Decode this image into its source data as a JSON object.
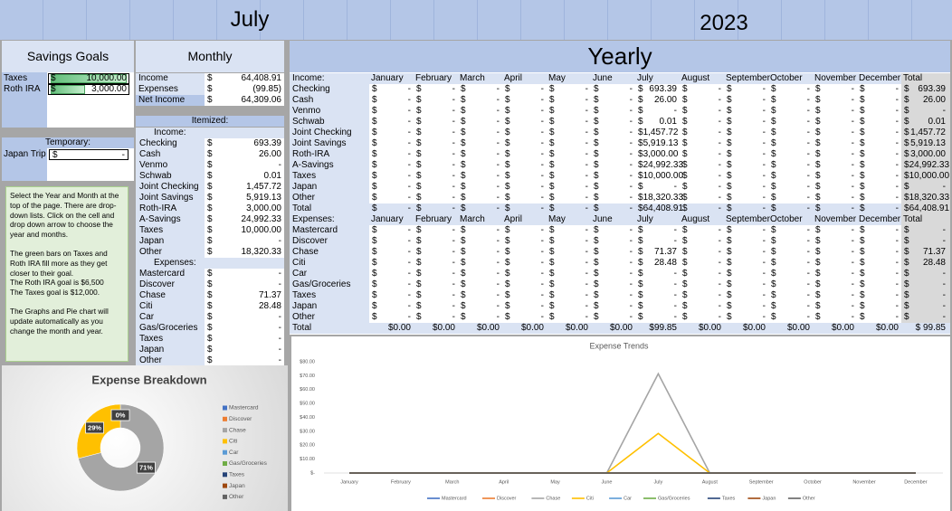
{
  "header": {
    "month": "July",
    "year": "2023"
  },
  "savings_goals": {
    "title": "Savings Goals",
    "currency": "$",
    "rows": [
      {
        "name": "Taxes",
        "value": "10,000.00"
      },
      {
        "name": "Roth IRA",
        "value": "3,000.00"
      }
    ]
  },
  "temporary": {
    "label": "Temporary:",
    "currency": "$",
    "rows": [
      {
        "name": "Japan Trip",
        "value": "-"
      }
    ]
  },
  "note": {
    "paragraphs": [
      [
        "Select the Year and Month at the top of the page. There are drop-down lists. Click on the cell and drop down arrow to choose the year and months."
      ],
      [
        "The green bars on Taxes and Roth IRA fill more as they get closer to their goal.",
        "The Roth IRA goal is $6,500",
        "The Taxes goal is $12,000."
      ],
      [
        "The Graphs and Pie chart will update automatically as you change the month and year."
      ]
    ]
  },
  "monthly": {
    "title": "Monthly",
    "currency": "$",
    "summary": [
      {
        "name": "Income",
        "value": "64,408.91"
      },
      {
        "name": "Expenses",
        "value": "(99.85)"
      },
      {
        "name": "Net Income",
        "value": "64,309.06"
      }
    ],
    "itemized": "Itemized:",
    "income": {
      "label": "Income:",
      "rows": [
        {
          "name": "Checking",
          "value": "693.39"
        },
        {
          "name": "Cash",
          "value": "26.00"
        },
        {
          "name": "Venmo",
          "value": "-"
        },
        {
          "name": "Schwab",
          "value": "0.01"
        },
        {
          "name": "Joint Checking",
          "value": "1,457.72"
        },
        {
          "name": "Joint Savings",
          "value": "5,919.13"
        },
        {
          "name": "Roth-IRA",
          "value": "3,000.00"
        },
        {
          "name": "A-Savings",
          "value": "24,992.33"
        },
        {
          "name": "Taxes",
          "value": "10,000.00"
        },
        {
          "name": "Japan",
          "value": "-"
        },
        {
          "name": "Other",
          "value": "18,320.33"
        }
      ]
    },
    "expenses": {
      "label": "Expenses:",
      "rows": [
        {
          "name": "Mastercard",
          "value": "-"
        },
        {
          "name": "Discover",
          "value": "-"
        },
        {
          "name": "Chase",
          "value": "71.37"
        },
        {
          "name": "Citi",
          "value": "28.48"
        },
        {
          "name": "Car",
          "value": "-"
        },
        {
          "name": "Gas/Groceries",
          "value": "-"
        },
        {
          "name": "Taxes",
          "value": "-"
        },
        {
          "name": "Japan",
          "value": "-"
        },
        {
          "name": "Other",
          "value": "-"
        }
      ]
    }
  },
  "yearly": {
    "title": "Yearly",
    "currency": "$",
    "total_label": "Total",
    "months": [
      "January",
      "February",
      "March",
      "April",
      "May",
      "June",
      "July",
      "August",
      "September",
      "October",
      "November",
      "December"
    ],
    "income": {
      "label": "Income:",
      "rows": [
        {
          "name": "Checking",
          "values": [
            "-",
            "-",
            "-",
            "-",
            "-",
            "-",
            "693.39",
            "-",
            "-",
            "-",
            "-",
            "-",
            "693.39"
          ]
        },
        {
          "name": "Cash",
          "values": [
            "-",
            "-",
            "-",
            "-",
            "-",
            "-",
            "26.00",
            "-",
            "-",
            "-",
            "-",
            "-",
            "26.00"
          ]
        },
        {
          "name": "Venmo",
          "values": [
            "-",
            "-",
            "-",
            "-",
            "-",
            "-",
            "-",
            "-",
            "-",
            "-",
            "-",
            "-",
            "-"
          ]
        },
        {
          "name": "Schwab",
          "values": [
            "-",
            "-",
            "-",
            "-",
            "-",
            "-",
            "0.01",
            "-",
            "-",
            "-",
            "-",
            "-",
            "0.01"
          ]
        },
        {
          "name": "Joint Checking",
          "values": [
            "-",
            "-",
            "-",
            "-",
            "-",
            "-",
            "1,457.72",
            "-",
            "-",
            "-",
            "-",
            "-",
            "1,457.72"
          ]
        },
        {
          "name": "Joint Savings",
          "values": [
            "-",
            "-",
            "-",
            "-",
            "-",
            "-",
            "5,919.13",
            "-",
            "-",
            "-",
            "-",
            "-",
            "5,919.13"
          ]
        },
        {
          "name": "Roth-IRA",
          "values": [
            "-",
            "-",
            "-",
            "-",
            "-",
            "-",
            "3,000.00",
            "-",
            "-",
            "-",
            "-",
            "-",
            "3,000.00"
          ]
        },
        {
          "name": "A-Savings",
          "values": [
            "-",
            "-",
            "-",
            "-",
            "-",
            "-",
            "24,992.33",
            "-",
            "-",
            "-",
            "-",
            "-",
            "24,992.33"
          ]
        },
        {
          "name": "Taxes",
          "values": [
            "-",
            "-",
            "-",
            "-",
            "-",
            "-",
            "10,000.00",
            "-",
            "-",
            "-",
            "-",
            "-",
            "10,000.00"
          ]
        },
        {
          "name": "Japan",
          "values": [
            "-",
            "-",
            "-",
            "-",
            "-",
            "-",
            "-",
            "-",
            "-",
            "-",
            "-",
            "-",
            "-"
          ]
        },
        {
          "name": "Other",
          "values": [
            "-",
            "-",
            "-",
            "-",
            "-",
            "-",
            "18,320.33",
            "-",
            "-",
            "-",
            "-",
            "-",
            "18,320.33"
          ]
        },
        {
          "name": "Total",
          "values": [
            "-",
            "-",
            "-",
            "-",
            "-",
            "-",
            "64,408.91",
            "-",
            "-",
            "-",
            "-",
            "-",
            "64,408.91"
          ]
        }
      ]
    },
    "expenses": {
      "label": "Expenses:",
      "rows": [
        {
          "name": "Mastercard",
          "values": [
            "-",
            "-",
            "-",
            "-",
            "-",
            "-",
            "-",
            "-",
            "-",
            "-",
            "-",
            "-",
            "-"
          ]
        },
        {
          "name": "Discover",
          "values": [
            "-",
            "-",
            "-",
            "-",
            "-",
            "-",
            "-",
            "-",
            "-",
            "-",
            "-",
            "-",
            "-"
          ]
        },
        {
          "name": "Chase",
          "values": [
            "-",
            "-",
            "-",
            "-",
            "-",
            "-",
            "71.37",
            "-",
            "-",
            "-",
            "-",
            "-",
            "71.37"
          ]
        },
        {
          "name": "Citi",
          "values": [
            "-",
            "-",
            "-",
            "-",
            "-",
            "-",
            "28.48",
            "-",
            "-",
            "-",
            "-",
            "-",
            "28.48"
          ]
        },
        {
          "name": "Car",
          "values": [
            "-",
            "-",
            "-",
            "-",
            "-",
            "-",
            "-",
            "-",
            "-",
            "-",
            "-",
            "-",
            "-"
          ]
        },
        {
          "name": "Gas/Groceries",
          "values": [
            "-",
            "-",
            "-",
            "-",
            "-",
            "-",
            "-",
            "-",
            "-",
            "-",
            "-",
            "-",
            "-"
          ]
        },
        {
          "name": "Taxes",
          "values": [
            "-",
            "-",
            "-",
            "-",
            "-",
            "-",
            "-",
            "-",
            "-",
            "-",
            "-",
            "-",
            "-"
          ]
        },
        {
          "name": "Japan",
          "values": [
            "-",
            "-",
            "-",
            "-",
            "-",
            "-",
            "-",
            "-",
            "-",
            "-",
            "-",
            "-",
            "-"
          ]
        },
        {
          "name": "Other",
          "values": [
            "-",
            "-",
            "-",
            "-",
            "-",
            "-",
            "-",
            "-",
            "-",
            "-",
            "-",
            "-",
            "-"
          ]
        }
      ],
      "total": {
        "name": "Total",
        "values": [
          "$0.00",
          "$0.00",
          "$0.00",
          "$0.00",
          "$0.00",
          "$0.00",
          "$99.85",
          "$0.00",
          "$0.00",
          "$0.00",
          "$0.00",
          "$0.00",
          "$ 99.85"
        ]
      }
    }
  },
  "chart_data": [
    {
      "type": "pie",
      "title": "Expense Breakdown",
      "donut": true,
      "categories": [
        "Mastercard",
        "Discover",
        "Chase",
        "Citi",
        "Car",
        "Gas/Groceries",
        "Taxes",
        "Japan",
        "Other"
      ],
      "colors": [
        "#4472c4",
        "#ed7d31",
        "#a5a5a5",
        "#ffc000",
        "#5b9bd5",
        "#70ad47",
        "#264478",
        "#9e480e",
        "#636363"
      ],
      "values": [
        0,
        0,
        71,
        29,
        0,
        0,
        0,
        0,
        0
      ],
      "value_labels": [
        "0%",
        null,
        "71%",
        "29%",
        null,
        null,
        null,
        null,
        null
      ]
    },
    {
      "type": "line",
      "title": "Expense Trends",
      "categories": [
        "January",
        "February",
        "March",
        "April",
        "May",
        "June",
        "July",
        "August",
        "September",
        "October",
        "November",
        "December"
      ],
      "ylim": [
        0,
        80
      ],
      "yticks": [
        {
          "value": 0,
          "label": "$-"
        },
        {
          "value": 10,
          "label": "$10.00"
        },
        {
          "value": 20,
          "label": "$20.00"
        },
        {
          "value": 30,
          "label": "$30.00"
        },
        {
          "value": 40,
          "label": "$40.00"
        },
        {
          "value": 50,
          "label": "$50.00"
        },
        {
          "value": 60,
          "label": "$60.00"
        },
        {
          "value": 70,
          "label": "$70.00"
        },
        {
          "value": 80,
          "label": "$80.00"
        }
      ],
      "series": [
        {
          "name": "Mastercard",
          "color": "#4472c4",
          "values": [
            0,
            0,
            0,
            0,
            0,
            0,
            0,
            0,
            0,
            0,
            0,
            0
          ]
        },
        {
          "name": "Discover",
          "color": "#ed7d31",
          "values": [
            0,
            0,
            0,
            0,
            0,
            0,
            0,
            0,
            0,
            0,
            0,
            0
          ]
        },
        {
          "name": "Chase",
          "color": "#a5a5a5",
          "values": [
            0,
            0,
            0,
            0,
            0,
            0,
            71.37,
            0,
            0,
            0,
            0,
            0
          ]
        },
        {
          "name": "Citi",
          "color": "#ffc000",
          "values": [
            0,
            0,
            0,
            0,
            0,
            0,
            28.48,
            0,
            0,
            0,
            0,
            0
          ]
        },
        {
          "name": "Car",
          "color": "#5b9bd5",
          "values": [
            0,
            0,
            0,
            0,
            0,
            0,
            0,
            0,
            0,
            0,
            0,
            0
          ]
        },
        {
          "name": "Gas/Groceries",
          "color": "#70ad47",
          "values": [
            0,
            0,
            0,
            0,
            0,
            0,
            0,
            0,
            0,
            0,
            0,
            0
          ]
        },
        {
          "name": "Taxes",
          "color": "#264478",
          "values": [
            0,
            0,
            0,
            0,
            0,
            0,
            0,
            0,
            0,
            0,
            0,
            0
          ]
        },
        {
          "name": "Japan",
          "color": "#9e480e",
          "values": [
            0,
            0,
            0,
            0,
            0,
            0,
            0,
            0,
            0,
            0,
            0,
            0
          ]
        },
        {
          "name": "Other",
          "color": "#636363",
          "values": [
            0,
            0,
            0,
            0,
            0,
            0,
            0,
            0,
            0,
            0,
            0,
            0
          ]
        }
      ]
    }
  ]
}
